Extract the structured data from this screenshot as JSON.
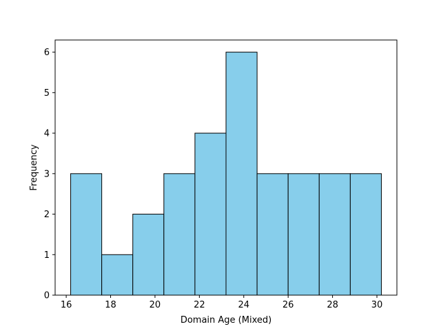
{
  "chart_data": {
    "type": "histogram",
    "bins": [
      {
        "start": 16.2,
        "end": 17.6,
        "count": 3
      },
      {
        "start": 17.6,
        "end": 19.0,
        "count": 1
      },
      {
        "start": 19.0,
        "end": 20.4,
        "count": 2
      },
      {
        "start": 20.4,
        "end": 21.8,
        "count": 3
      },
      {
        "start": 21.8,
        "end": 23.2,
        "count": 4
      },
      {
        "start": 23.2,
        "end": 24.6,
        "count": 6
      },
      {
        "start": 24.6,
        "end": 26.0,
        "count": 3
      },
      {
        "start": 26.0,
        "end": 27.4,
        "count": 3
      },
      {
        "start": 27.4,
        "end": 28.8,
        "count": 3
      },
      {
        "start": 28.8,
        "end": 30.2,
        "count": 3
      }
    ],
    "xlabel": "Domain Age (Mixed)",
    "ylabel": "Frequency",
    "xlim": [
      15.5,
      30.9
    ],
    "ylim": [
      0,
      6.3
    ],
    "xticks": [
      16,
      18,
      20,
      22,
      24,
      26,
      28,
      30
    ],
    "yticks": [
      0,
      1,
      2,
      3,
      4,
      5,
      6
    ],
    "bar_color": "#87ceeb",
    "edge_color": "#000000",
    "grid": false
  }
}
